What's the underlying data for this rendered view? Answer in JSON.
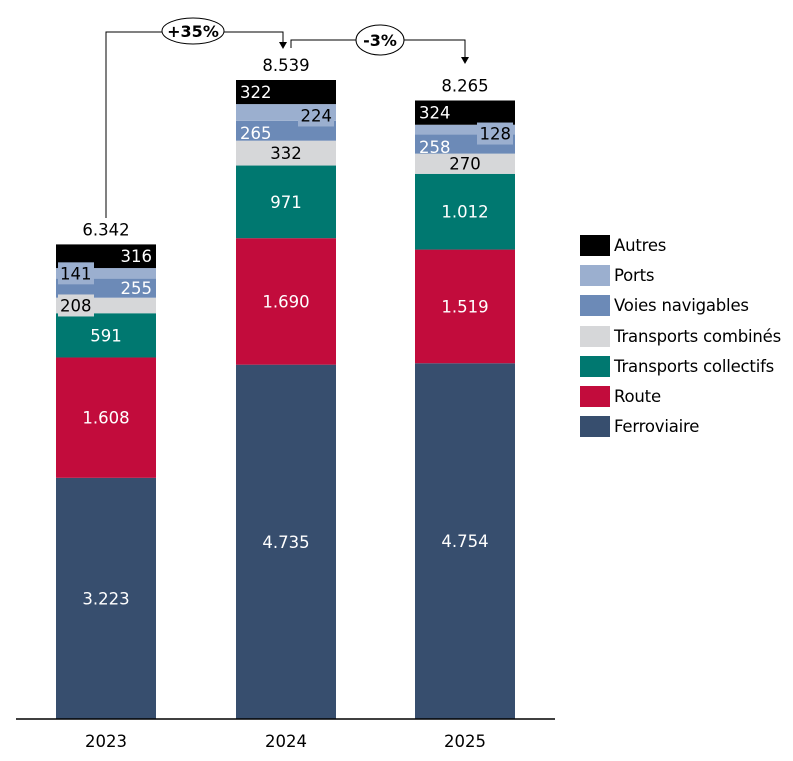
{
  "chart_data": {
    "type": "bar",
    "stacked": true,
    "title": "",
    "xlabel": "",
    "ylabel": "",
    "categories": [
      "2023",
      "2024",
      "2025"
    ],
    "series": [
      {
        "name": "Ferroviaire",
        "color": "#374E6E",
        "values": [
          3223,
          4735,
          4754
        ],
        "labels": [
          "3.223",
          "4.735",
          "4.754"
        ],
        "label_color": "#ffffff"
      },
      {
        "name": "Route",
        "color": "#C20C3C",
        "values": [
          1608,
          1690,
          1519
        ],
        "labels": [
          "1.608",
          "1.690",
          "1.519"
        ],
        "label_color": "#ffffff"
      },
      {
        "name": "Transports collectifs",
        "color": "#007870",
        "values": [
          591,
          971,
          1012
        ],
        "labels": [
          "591",
          "971",
          "1.012"
        ],
        "label_color": "#ffffff"
      },
      {
        "name": "Transports combinés",
        "color": "#D6D7D9",
        "values": [
          208,
          332,
          270
        ],
        "labels": [
          "208",
          "332",
          "270"
        ],
        "label_color": "#000000"
      },
      {
        "name": "Voies navigables",
        "color": "#6C8AB7",
        "values": [
          255,
          265,
          258
        ],
        "labels": [
          "255",
          "265",
          "258"
        ],
        "label_color": "#ffffff"
      },
      {
        "name": "Ports",
        "color": "#9BAFCF",
        "values": [
          141,
          224,
          128
        ],
        "labels": [
          "141",
          "224",
          "128"
        ],
        "label_color": "#000000"
      },
      {
        "name": "Autres",
        "color": "#000000",
        "values": [
          316,
          322,
          324
        ],
        "labels": [
          "316",
          "322",
          "324"
        ],
        "label_color": "#ffffff"
      }
    ],
    "totals": [
      6342,
      8539,
      8265
    ],
    "total_labels": [
      "6.342",
      "8.539",
      "8.265"
    ],
    "annotations": [
      {
        "from": "2023",
        "to": "2024",
        "text": "+35%"
      },
      {
        "from": "2024",
        "to": "2025",
        "text": "-3%"
      }
    ],
    "ylim": [
      0,
      9000
    ],
    "grid": false,
    "legend_position": "right",
    "legend_order": [
      "Autres",
      "Ports",
      "Voies navigables",
      "Transports combinés",
      "Transports collectifs",
      "Route",
      "Ferroviaire"
    ]
  }
}
